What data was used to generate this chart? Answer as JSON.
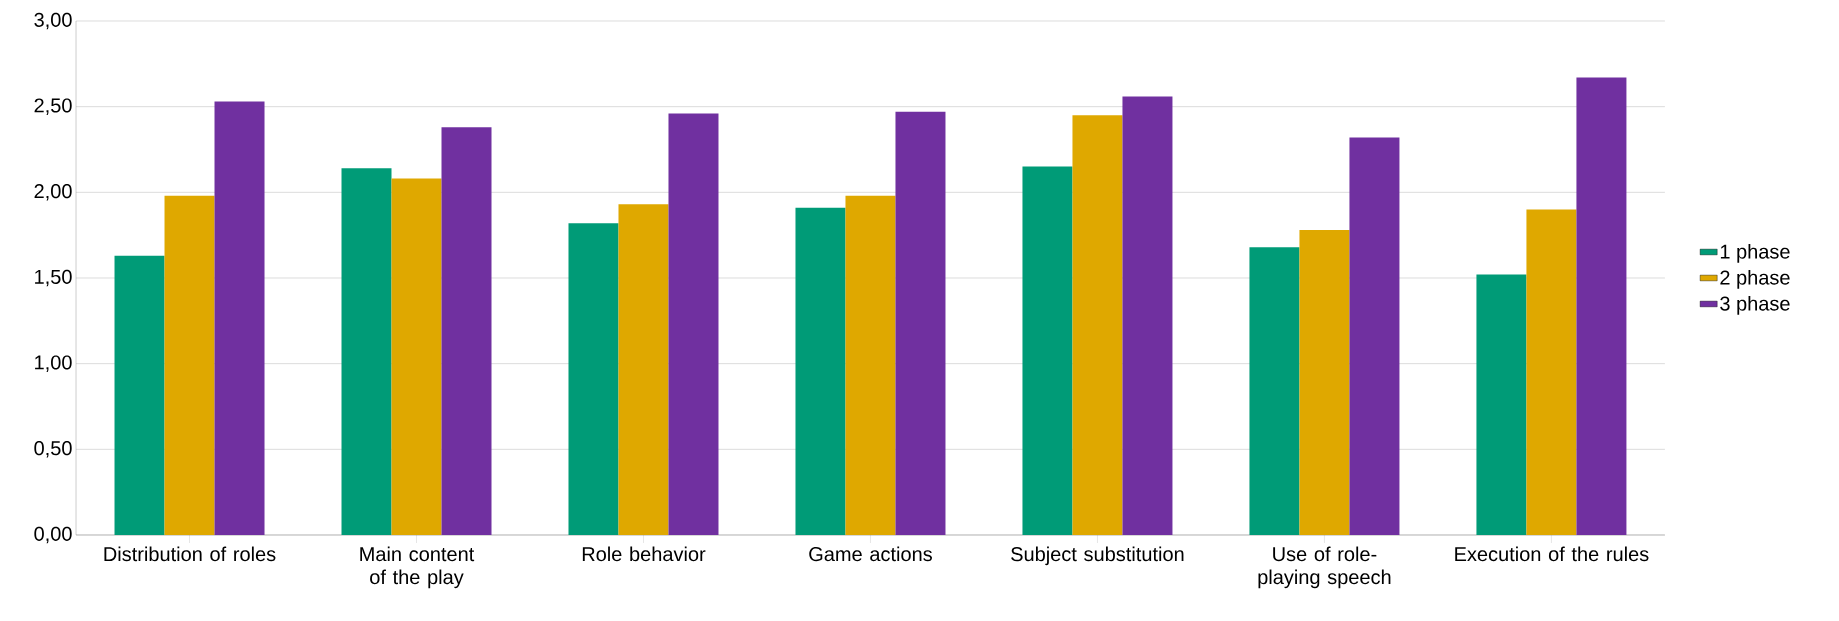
{
  "chart_data": {
    "type": "bar",
    "categories": [
      "Distribution of roles",
      "Main content of the play",
      "Role behavior",
      "Game actions",
      "Subject substitution",
      "Use of role-playing speech",
      "Execution of the rules"
    ],
    "series": [
      {
        "name": "1 phase",
        "color": "#009b77",
        "values": [
          1.63,
          2.14,
          1.82,
          1.91,
          2.15,
          1.68,
          1.52
        ]
      },
      {
        "name": "2 phase",
        "color": "#dfa800",
        "values": [
          1.98,
          2.08,
          1.93,
          1.98,
          2.45,
          1.78,
          1.9
        ]
      },
      {
        "name": "3 phase",
        "color": "#7030a0",
        "values": [
          2.53,
          2.38,
          2.46,
          2.47,
          2.56,
          2.32,
          2.67
        ]
      }
    ],
    "ylim": [
      0,
      3
    ],
    "yticks": [
      {
        "value": 0,
        "label": "0,00"
      },
      {
        "value": 0.5,
        "label": "0,50"
      },
      {
        "value": 1,
        "label": "1,00"
      },
      {
        "value": 1.5,
        "label": "1,50"
      },
      {
        "value": 2,
        "label": "2,00"
      },
      {
        "value": 2.5,
        "label": "2,50"
      },
      {
        "value": 3,
        "label": "3,00"
      }
    ],
    "grid": "y",
    "legend": "right"
  }
}
